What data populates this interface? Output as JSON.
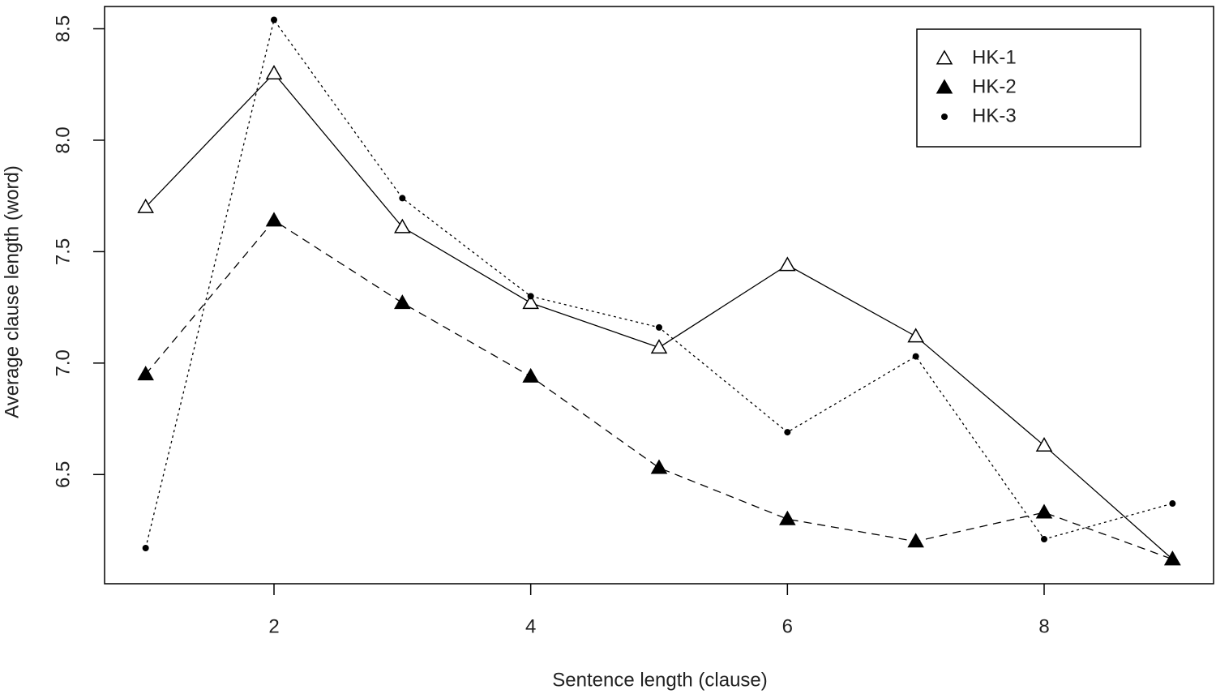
{
  "chart_data": {
    "type": "line",
    "x_label": "Sentence length (clause)",
    "y_label": "Average clause length (word)",
    "x": [
      1,
      2,
      3,
      4,
      5,
      6,
      7,
      8,
      9
    ],
    "series": [
      {
        "name": "HK-1",
        "color": "#000000",
        "marker": "open-triangle",
        "dash": "solid",
        "values": [
          7.7,
          8.3,
          7.61,
          7.27,
          7.07,
          7.44,
          7.12,
          6.63,
          6.12
        ]
      },
      {
        "name": "HK-2",
        "color": "#000000",
        "marker": "filled-triangle",
        "dash": "dashed",
        "values": [
          6.95,
          7.64,
          7.27,
          6.94,
          6.53,
          6.3,
          6.2,
          6.33,
          6.12
        ]
      },
      {
        "name": "HK-3",
        "color": "#000000",
        "marker": "dot",
        "dash": "dotted",
        "values": [
          6.17,
          8.54,
          7.74,
          7.3,
          7.16,
          6.69,
          7.03,
          6.21,
          6.37
        ]
      }
    ],
    "xlim": [
      0.68,
      9.32
    ],
    "ylim": [
      6.01,
      8.6
    ],
    "xticks": [
      2,
      4,
      6,
      8
    ],
    "yticks": [
      6.5,
      {
        "value": 7,
        "label": "7.0"
      },
      7.5,
      {
        "value": 8,
        "label": "8.0"
      },
      8.5
    ],
    "grid": false,
    "legend_position": "topright"
  }
}
